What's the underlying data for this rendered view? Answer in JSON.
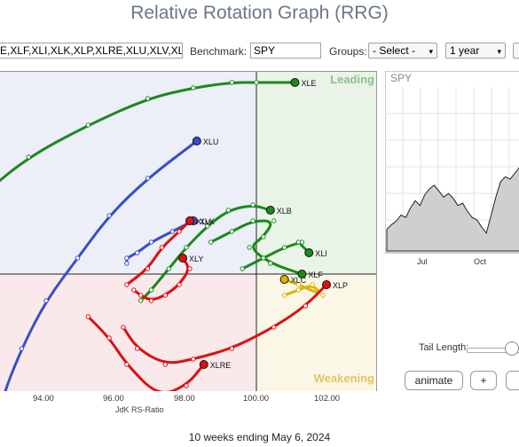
{
  "title": "Relative Rotation Graph (RRG)",
  "controls": {
    "symbols_value": "E,XLF,XLI,XLK,XLP,XLRE,XLU,XLV,XL",
    "benchmark_label": "Benchmark:",
    "benchmark_value": "SPY",
    "groups_label": "Groups:",
    "groups_value": "- Select -",
    "period_value": "1 year"
  },
  "quadrants": {
    "leading": "Leading",
    "weakening": "Weakening",
    "colors": {
      "leading": "#eaf3e8",
      "weakening": "#fbf7e6",
      "lagging": "#f9e9ea",
      "improving": "#eceef8"
    }
  },
  "chart_data": {
    "type": "scatter",
    "xlabel": "JdK RS-Ratio",
    "xlim": [
      92.3,
      103.5
    ],
    "ylim": [
      96.5,
      103.5
    ],
    "x_ticks": [
      "94.00",
      "96.00",
      "98.00",
      "100.00",
      "102.00"
    ],
    "series": [
      {
        "name": "XLE",
        "color": "#1a8a1a",
        "points": [
          [
            92.2,
            101.5
          ],
          [
            93.5,
            102.2
          ],
          [
            95.2,
            102.8
          ],
          [
            96.9,
            103.3
          ],
          [
            98.2,
            103.5
          ],
          [
            99.3,
            103.6
          ],
          [
            100.0,
            103.6
          ],
          [
            101.1,
            103.6
          ]
        ]
      },
      {
        "name": "XLU",
        "color": "#3a4fc4",
        "points": [
          [
            92.6,
            96.9
          ],
          [
            92.7,
            97.6
          ],
          [
            93.3,
            98.6
          ],
          [
            94.0,
            99.5
          ],
          [
            94.9,
            100.3
          ],
          [
            95.8,
            101.1
          ],
          [
            96.9,
            101.8
          ],
          [
            98.3,
            102.5
          ]
        ]
      },
      {
        "name": "XLF",
        "color": "#1a8a1a",
        "points": [
          [
            98.7,
            100.6
          ],
          [
            99.3,
            100.8
          ],
          [
            99.9,
            101.0
          ],
          [
            100.5,
            101.0
          ],
          [
            100.2,
            100.7
          ],
          [
            99.8,
            100.5
          ],
          [
            100.4,
            100.2
          ],
          [
            101.3,
            100.0
          ]
        ]
      },
      {
        "name": "XLB",
        "color": "#1a8a1a",
        "points": [
          [
            96.7,
            99.5
          ],
          [
            97.0,
            99.7
          ],
          [
            97.5,
            100.1
          ],
          [
            98.0,
            100.5
          ],
          [
            98.6,
            100.9
          ],
          [
            99.2,
            101.2
          ],
          [
            99.9,
            101.3
          ],
          [
            100.4,
            101.2
          ]
        ]
      },
      {
        "name": "XLI",
        "color": "#1a8a1a",
        "points": [
          [
            99.6,
            100.1
          ],
          [
            100.2,
            100.3
          ],
          [
            100.8,
            100.5
          ],
          [
            101.3,
            100.6
          ],
          [
            101.2,
            100.6
          ],
          [
            101.5,
            100.4
          ]
        ]
      },
      {
        "name": "XLK",
        "color": "#3a4fc4",
        "points": [
          [
            96.3,
            100.2
          ],
          [
            96.3,
            100.3
          ],
          [
            96.6,
            100.4
          ],
          [
            97.0,
            100.6
          ],
          [
            97.6,
            100.8
          ],
          [
            98.2,
            101.0
          ]
        ]
      },
      {
        "name": "XLC",
        "color": "#d9b400",
        "points": [
          [
            100.8,
            99.6
          ],
          [
            101.2,
            99.7
          ],
          [
            101.6,
            99.8
          ],
          [
            101.9,
            99.6
          ],
          [
            101.2,
            99.8
          ],
          [
            100.8,
            99.9
          ]
        ]
      },
      {
        "name": "XLY",
        "color": "#d11",
        "points": [
          [
            96.5,
            99.7
          ],
          [
            96.7,
            99.6
          ],
          [
            97.0,
            99.5
          ],
          [
            97.4,
            99.6
          ],
          [
            97.8,
            99.8
          ],
          [
            98.1,
            100.1
          ],
          [
            97.9,
            100.3
          ]
        ]
      },
      {
        "name": "XLV",
        "color": "#d11",
        "points": [
          [
            96.3,
            99.8
          ],
          [
            96.9,
            100.1
          ],
          [
            97.3,
            100.5
          ],
          [
            97.8,
            100.8
          ],
          [
            98.1,
            101.0
          ]
        ]
      },
      {
        "name": "XLRE",
        "color": "#d11",
        "points": [
          [
            95.2,
            99.2
          ],
          [
            95.8,
            98.8
          ],
          [
            96.3,
            98.3
          ],
          [
            97.2,
            97.7
          ],
          [
            98.0,
            97.9
          ],
          [
            98.5,
            98.3
          ]
        ]
      },
      {
        "name": "XLP",
        "color": "#d11",
        "points": [
          [
            96.2,
            99.0
          ],
          [
            96.6,
            98.6
          ],
          [
            97.4,
            98.3
          ],
          [
            98.2,
            98.4
          ],
          [
            99.3,
            98.6
          ],
          [
            100.5,
            99.0
          ],
          [
            101.4,
            99.4
          ],
          [
            102.0,
            99.8
          ]
        ]
      }
    ],
    "labels": [
      "XLE",
      "XLU",
      "XLB",
      "XLI",
      "XLF",
      "XLC",
      "XLK",
      "XLV",
      "XLY",
      "XLRE",
      "XLP"
    ]
  },
  "spy_chart": {
    "title": "SPY",
    "x_ticks": [
      "Jul",
      "Oct"
    ],
    "values": [
      18,
      22,
      25,
      30,
      28,
      36,
      42,
      38,
      47,
      52,
      55,
      50,
      45,
      48,
      44,
      38,
      40,
      33,
      28,
      26,
      20,
      15,
      30,
      45,
      58,
      62,
      60,
      65,
      70,
      72
    ]
  },
  "tail": {
    "label": "Tail Length:",
    "value": 0.9
  },
  "buttons": {
    "animate": "animate",
    "plus": "+"
  },
  "footer": "10 weeks ending May 6, 2024"
}
